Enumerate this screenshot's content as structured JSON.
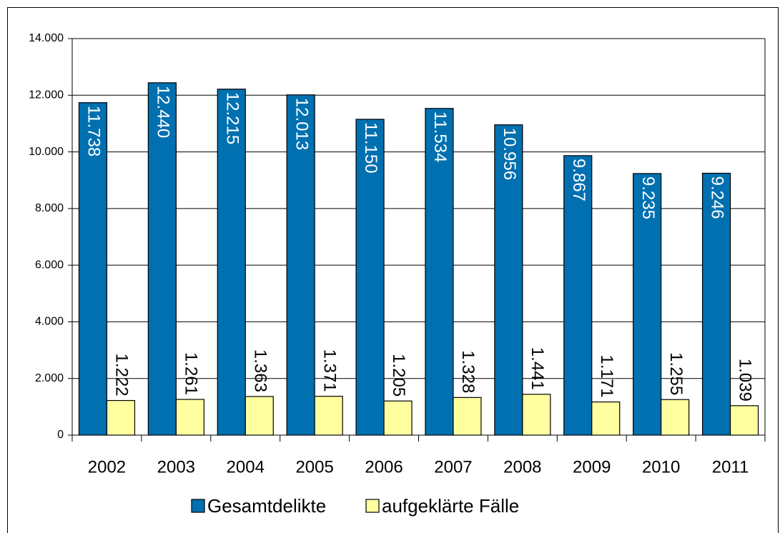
{
  "chart_data": {
    "type": "bar",
    "categories": [
      "2002",
      "2003",
      "2004",
      "2005",
      "2006",
      "2007",
      "2008",
      "2009",
      "2010",
      "2011"
    ],
    "series": [
      {
        "name": "Gesamtdelikte",
        "color": "#0070b0",
        "values": [
          11738,
          12440,
          12215,
          12013,
          11150,
          11534,
          10956,
          9867,
          9235,
          9246
        ],
        "value_labels": [
          "11.738",
          "12.440",
          "12.215",
          "12.013",
          "11.150",
          "11.534",
          "10.956",
          "9.867",
          "9.235",
          "9.246"
        ]
      },
      {
        "name": "aufgeklärte Fälle",
        "color": "#ffffa0",
        "values": [
          1222,
          1261,
          1363,
          1371,
          1205,
          1328,
          1441,
          1171,
          1255,
          1039
        ],
        "value_labels": [
          "1.222",
          "1.261",
          "1.363",
          "1.371",
          "1.205",
          "1.328",
          "1.441",
          "1.171",
          "1.255",
          "1.039"
        ]
      }
    ],
    "ylim": [
      0,
      14000
    ],
    "yticks": [
      0,
      {
        "value": 2000,
        "label": "2.000"
      },
      {
        "value": 4000,
        "label": "4.000"
      },
      {
        "value": 6000,
        "label": "6.000"
      },
      {
        "value": 8000,
        "label": "8.000"
      },
      {
        "value": 10000,
        "label": "10.000"
      },
      {
        "value": 12000,
        "label": "12.000"
      },
      {
        "value": 14000,
        "label": "14.000"
      }
    ],
    "grid": true,
    "legend": "bottom"
  }
}
